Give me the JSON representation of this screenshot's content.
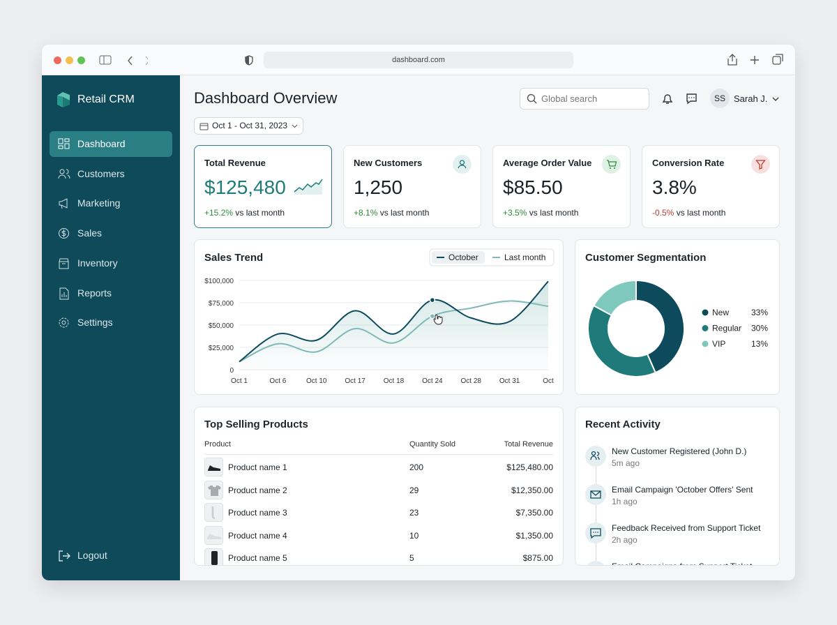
{
  "browser": {
    "url": "dashboard.com"
  },
  "sidebar": {
    "brand": "Retail CRM",
    "nav": [
      "Dashboard",
      "Customers",
      "Marketing",
      "Sales",
      "Inventory",
      "Reports",
      "Settings"
    ],
    "logout": "Logout"
  },
  "header": {
    "title": "Dashboard Overview",
    "date_range": "Oct 1 - Oct 31, 2023",
    "search_placeholder": "Global search",
    "user_initials": "SS",
    "user_name": "Sarah J."
  },
  "kpis": [
    {
      "label": "Total Revenue",
      "value": "$125,480",
      "change": "+15.2%",
      "note": "vs last month"
    },
    {
      "label": "New Customers",
      "value": "1,250",
      "change": "+8.1%",
      "note": "vs last month"
    },
    {
      "label": "Average Order Value",
      "value": "$85.50",
      "change": "+3.5%",
      "note": "vs last month"
    },
    {
      "label": "Conversion Rate",
      "value": "3.8%",
      "change": "-0.5%",
      "note": "vs last month"
    }
  ],
  "chart_data": [
    {
      "type": "line",
      "title": "Sales Trend",
      "categories": [
        "Oct 1",
        "Oct 6",
        "Oct 10",
        "Oct 17",
        "Oct 18",
        "Oct 24",
        "Oct 28",
        "Oct 31",
        "Oct"
      ],
      "series": [
        {
          "name": "October",
          "color": "#0d4a5c",
          "values": [
            9000,
            40000,
            33000,
            66000,
            40000,
            78000,
            58000,
            54000,
            99000
          ]
        },
        {
          "name": "Last month",
          "color": "#7fb9b5",
          "values": [
            9000,
            29000,
            20000,
            46000,
            30000,
            60000,
            69000,
            77000,
            71000
          ]
        }
      ],
      "ylim": [
        0,
        100000
      ],
      "yticks": [
        0,
        {
          "value": 25000,
          "label": "$25,000"
        },
        {
          "value": 50000,
          "label": "$50,000"
        },
        {
          "value": 75000,
          "label": "$75,000"
        },
        {
          "value": 100000,
          "label": "$100,000"
        }
      ],
      "grid": true
    },
    {
      "type": "pie",
      "title": "Customer Segmentation",
      "categories": [
        "New",
        "Regular",
        "VIP"
      ],
      "values": [
        33,
        30,
        13
      ],
      "value_labels": [
        "33%",
        "30%",
        "13%"
      ],
      "colors": [
        "#0d4a5c",
        "#1f7a7a",
        "#7fc8bd"
      ]
    }
  ],
  "products": {
    "title": "Top Selling Products",
    "columns": [
      "Product",
      "Quantity Sold",
      "Total Revenue"
    ],
    "rows": [
      [
        "Product name 1",
        "200",
        "$125,480.00"
      ],
      [
        "Product name 2",
        "29",
        "$12,350.00"
      ],
      [
        "Product name 3",
        "23",
        "$7,350.00"
      ],
      [
        "Product name 4",
        "10",
        "$1,350.00"
      ],
      [
        "Product name 5",
        "5",
        "$875.00"
      ]
    ]
  },
  "activity": {
    "title": "Recent Activity",
    "items": [
      {
        "text": "New Customer Registered (John D.)",
        "time": "5m ago"
      },
      {
        "text": "Email Campaign 'October Offers' Sent",
        "time": "1h ago"
      },
      {
        "text": "Feedback Received from Support Ticket",
        "time": "2h ago"
      },
      {
        "text": "Email Campaigns from Support Ticket"
      }
    ]
  }
}
